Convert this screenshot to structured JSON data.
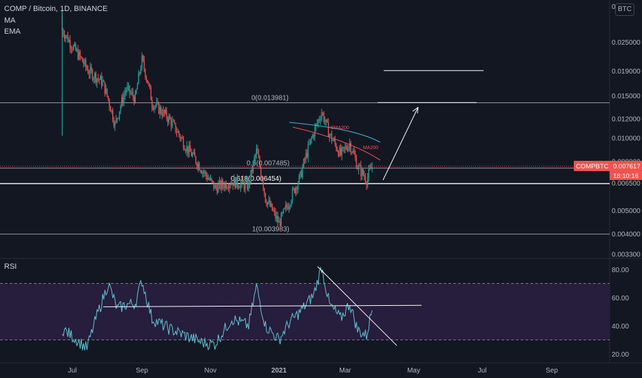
{
  "header": {
    "title": "COMP / Bitcoin, 1D, BINANCE",
    "indicator1": "MA",
    "indicator2": "EMA",
    "currency_badge": "BTC",
    "rsi_label": "RSI"
  },
  "price_tag": {
    "symbol": "COMPBTC",
    "price": "0.007617",
    "countdown": "18:10:16"
  },
  "colors": {
    "background": "#131722",
    "up": "#26a69a",
    "down": "#ef5350",
    "rsi_line": "#5fc8d8",
    "rsi_band": "#7e57c2",
    "tag": "#ef5350",
    "ema_line": "#3fb6d8",
    "ma_line": "#ef5350"
  },
  "chart_data": [
    {
      "type": "candlestick",
      "title": "COMP / Bitcoin, 1D, BINANCE",
      "x_ticks": [
        "Jul",
        "Sep",
        "Nov",
        "2021",
        "Mar",
        "May",
        "Jul",
        "Sep"
      ],
      "y_ticks": [
        "0.025000",
        "0.019000",
        "0.015000",
        "0.012000",
        "0.010000",
        "0.008000",
        "0.006500",
        "0.005000",
        "0.004000",
        "0.003300"
      ],
      "y_top_tick_partial": "0.0?00",
      "ylim": [
        0.0031,
        0.035
      ],
      "scale": "log",
      "series_close_anchors": [
        {
          "date": "2020-06-22",
          "close": 0.028
        },
        {
          "date": "2020-07-01",
          "close": 0.024
        },
        {
          "date": "2020-07-15",
          "close": 0.019
        },
        {
          "date": "2020-07-28",
          "close": 0.017
        },
        {
          "date": "2020-08-08",
          "close": 0.0113
        },
        {
          "date": "2020-08-18",
          "close": 0.016
        },
        {
          "date": "2020-08-26",
          "close": 0.0145
        },
        {
          "date": "2020-09-01",
          "close": 0.021
        },
        {
          "date": "2020-09-10",
          "close": 0.014
        },
        {
          "date": "2020-09-25",
          "close": 0.012
        },
        {
          "date": "2020-10-10",
          "close": 0.0092
        },
        {
          "date": "2020-10-25",
          "close": 0.0073
        },
        {
          "date": "2020-11-05",
          "close": 0.0062
        },
        {
          "date": "2020-11-20",
          "close": 0.0066
        },
        {
          "date": "2020-12-05",
          "close": 0.0063
        },
        {
          "date": "2020-12-12",
          "close": 0.0088
        },
        {
          "date": "2020-12-20",
          "close": 0.0056
        },
        {
          "date": "2021-01-01",
          "close": 0.0044
        },
        {
          "date": "2021-01-10",
          "close": 0.0054
        },
        {
          "date": "2021-01-20",
          "close": 0.0069
        },
        {
          "date": "2021-02-01",
          "close": 0.0105
        },
        {
          "date": "2021-02-08",
          "close": 0.0128
        },
        {
          "date": "2021-02-15",
          "close": 0.0103
        },
        {
          "date": "2021-02-25",
          "close": 0.0085
        },
        {
          "date": "2021-03-05",
          "close": 0.0095
        },
        {
          "date": "2021-03-12",
          "close": 0.0076
        },
        {
          "date": "2021-03-20",
          "close": 0.0067
        },
        {
          "date": "2021-03-25",
          "close": 0.0076
        }
      ],
      "fib_levels": [
        {
          "label": "0(0.013981)",
          "value": 0.013981
        },
        {
          "label": "0.5(0.007485)",
          "value": 0.007485
        },
        {
          "label": "0.618(0.006454)",
          "value": 0.006454
        },
        {
          "label": "1(0.003983)",
          "value": 0.003983
        }
      ],
      "annotations": [
        "EMA200",
        "MA200"
      ],
      "target_lines": [
        0.019,
        0.014
      ],
      "last_price": 0.007617
    },
    {
      "type": "line",
      "title": "RSI",
      "y_ticks": [
        "80.00",
        "60.00",
        "40.00",
        "20.00"
      ],
      "ylim": [
        17,
        87
      ],
      "bands": [
        70,
        30
      ],
      "rsi_anchors": [
        {
          "date": "2020-06-22",
          "value": 38
        },
        {
          "date": "2020-07-05",
          "value": 30
        },
        {
          "date": "2020-07-14",
          "value": 24
        },
        {
          "date": "2020-07-22",
          "value": 45
        },
        {
          "date": "2020-08-02",
          "value": 70
        },
        {
          "date": "2020-08-10",
          "value": 52
        },
        {
          "date": "2020-08-18",
          "value": 55
        },
        {
          "date": "2020-08-26",
          "value": 56
        },
        {
          "date": "2020-09-01",
          "value": 72
        },
        {
          "date": "2020-09-10",
          "value": 45
        },
        {
          "date": "2020-09-25",
          "value": 38
        },
        {
          "date": "2020-10-10",
          "value": 33
        },
        {
          "date": "2020-10-25",
          "value": 28
        },
        {
          "date": "2020-11-05",
          "value": 27
        },
        {
          "date": "2020-11-20",
          "value": 45
        },
        {
          "date": "2020-12-05",
          "value": 40
        },
        {
          "date": "2020-12-12",
          "value": 68
        },
        {
          "date": "2020-12-20",
          "value": 40
        },
        {
          "date": "2021-01-01",
          "value": 30
        },
        {
          "date": "2021-01-10",
          "value": 42
        },
        {
          "date": "2021-01-20",
          "value": 50
        },
        {
          "date": "2021-02-01",
          "value": 62
        },
        {
          "date": "2021-02-08",
          "value": 82
        },
        {
          "date": "2021-02-15",
          "value": 55
        },
        {
          "date": "2021-02-25",
          "value": 45
        },
        {
          "date": "2021-03-05",
          "value": 56
        },
        {
          "date": "2021-03-12",
          "value": 37
        },
        {
          "date": "2021-03-20",
          "value": 33
        },
        {
          "date": "2021-03-25",
          "value": 52
        }
      ]
    }
  ]
}
